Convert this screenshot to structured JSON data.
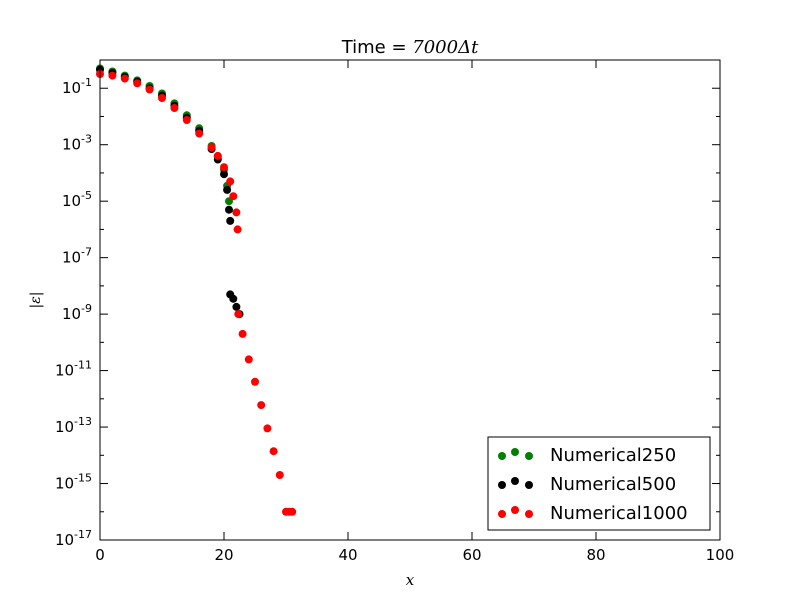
{
  "chart_data": {
    "type": "scatter",
    "title": "Time = 7000Δt",
    "title_prefix": "Time = ",
    "title_math": "7000Δt",
    "xlabel": "x",
    "ylabel": "|ε|",
    "xlim": [
      0,
      100
    ],
    "ylim": [
      1e-17,
      1
    ],
    "yscale": "log",
    "grid": false,
    "legend_position": "lower-right",
    "x_ticks": [
      "0",
      "20",
      "40",
      "60",
      "80",
      "100"
    ],
    "y_ticks": [
      {
        "base": "10",
        "exp": "-1"
      },
      {
        "base": "10",
        "exp": "-3"
      },
      {
        "base": "10",
        "exp": "-5"
      },
      {
        "base": "10",
        "exp": "-7"
      },
      {
        "base": "10",
        "exp": "-9"
      },
      {
        "base": "10",
        "exp": "-11"
      },
      {
        "base": "10",
        "exp": "-13"
      },
      {
        "base": "10",
        "exp": "-15"
      },
      {
        "base": "10",
        "exp": "-17"
      }
    ],
    "series": [
      {
        "name": "Numerical250",
        "color": "#008000",
        "points": [
          [
            0,
            0.5
          ],
          [
            2,
            0.39
          ],
          [
            4,
            0.28
          ],
          [
            6,
            0.19
          ],
          [
            8,
            0.12
          ],
          [
            10,
            0.065
          ],
          [
            12,
            0.029
          ],
          [
            14,
            0.011
          ],
          [
            16,
            0.0038
          ],
          [
            18,
            0.0009
          ],
          [
            19,
            0.00038
          ],
          [
            20,
            0.00013
          ],
          [
            20.5,
            3.5e-05
          ],
          [
            20.8,
            1e-05
          ]
        ]
      },
      {
        "name": "Numerical500",
        "color": "#000000",
        "points": [
          [
            0,
            0.45
          ],
          [
            2,
            0.35
          ],
          [
            4,
            0.25
          ],
          [
            6,
            0.17
          ],
          [
            8,
            0.1
          ],
          [
            10,
            0.055
          ],
          [
            12,
            0.024
          ],
          [
            14,
            0.009
          ],
          [
            16,
            0.0031
          ],
          [
            18,
            0.0007
          ],
          [
            19,
            0.0003
          ],
          [
            20,
            9e-05
          ],
          [
            20.5,
            2.5e-05
          ],
          [
            20.8,
            5e-06
          ],
          [
            21,
            2e-06
          ],
          [
            21,
            5e-09
          ],
          [
            21.5,
            3.5e-09
          ],
          [
            22,
            1.8e-09
          ],
          [
            22.5,
            1e-09
          ]
        ]
      },
      {
        "name": "Numerical1000",
        "color": "#ff0000",
        "points": [
          [
            0,
            0.32
          ],
          [
            2,
            0.28
          ],
          [
            4,
            0.22
          ],
          [
            6,
            0.15
          ],
          [
            8,
            0.09
          ],
          [
            10,
            0.045
          ],
          [
            12,
            0.02
          ],
          [
            14,
            0.0075
          ],
          [
            16,
            0.0025
          ],
          [
            18,
            0.0008
          ],
          [
            19,
            0.0004
          ],
          [
            20,
            0.00016
          ],
          [
            21,
            5e-05
          ],
          [
            21.5,
            1.5e-05
          ],
          [
            22,
            4e-06
          ],
          [
            22.2,
            1e-06
          ],
          [
            22.3,
            1e-09
          ],
          [
            23,
            2e-10
          ],
          [
            24,
            2.5e-11
          ],
          [
            25,
            4e-12
          ],
          [
            26,
            6e-13
          ],
          [
            27,
            9e-14
          ],
          [
            28,
            1.4e-14
          ],
          [
            29,
            2e-15
          ],
          [
            30,
            1e-16
          ],
          [
            30.5,
            1e-16
          ],
          [
            31,
            1e-16
          ]
        ]
      }
    ]
  }
}
